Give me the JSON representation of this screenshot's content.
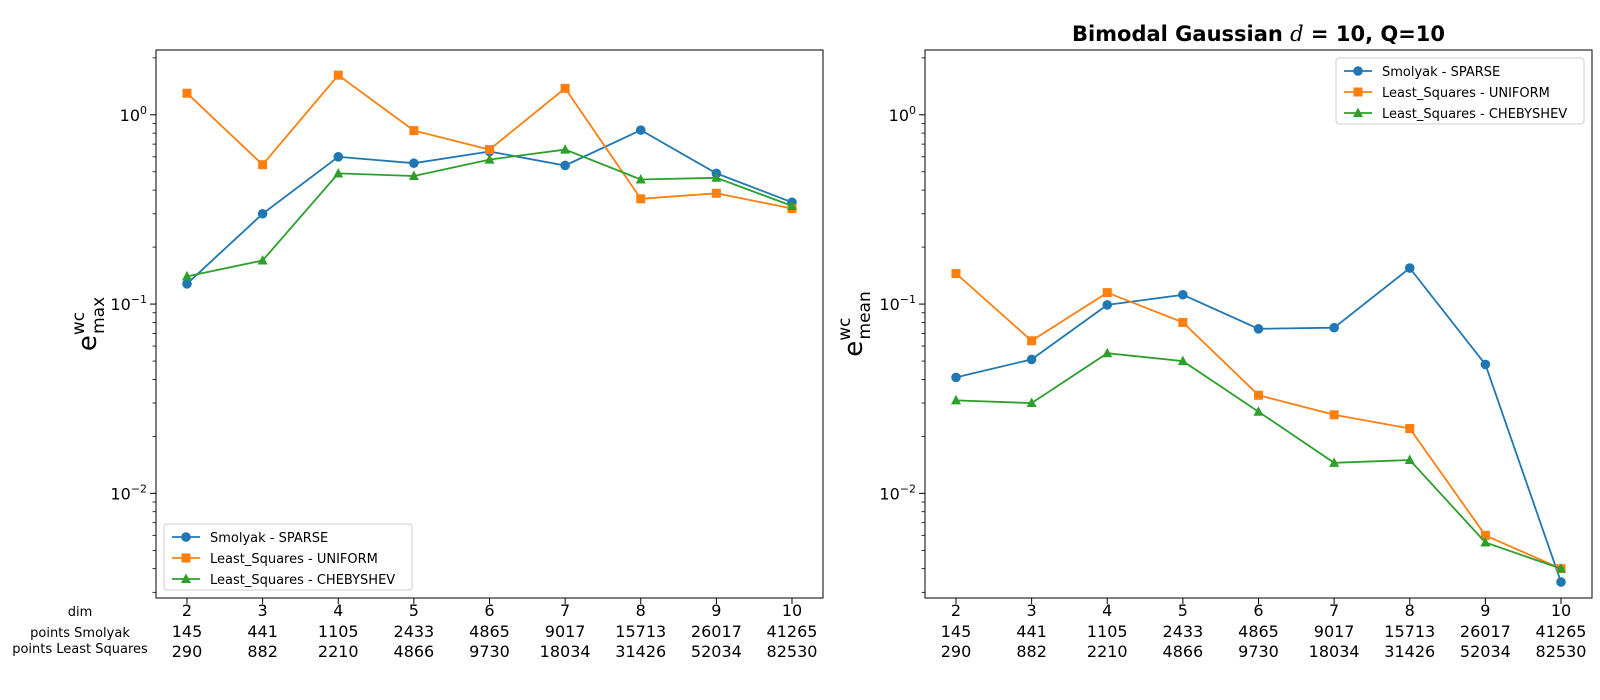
{
  "figure": {
    "row_labels": [
      "dim",
      "points Smolyak",
      "points Least Squares"
    ]
  },
  "chart_data": [
    {
      "type": "line",
      "title": "",
      "ylabel": "e^wc_max",
      "ylabel_base": "e",
      "ylabel_sup": "wc",
      "ylabel_sub": "max",
      "yscale": "log",
      "ylim": [
        0.0028,
        2.2
      ],
      "yticks": [
        {
          "value": 1,
          "base": "10",
          "exp": "0"
        },
        {
          "value": 0.1,
          "base": "10",
          "exp": "−1"
        },
        {
          "value": 0.01,
          "base": "10",
          "exp": "−2"
        }
      ],
      "x": [
        2,
        3,
        4,
        5,
        6,
        7,
        8,
        9,
        10
      ],
      "x_tick_rows": [
        [
          "2",
          "3",
          "4",
          "5",
          "6",
          "7",
          "8",
          "9",
          "10"
        ],
        [
          "145",
          "441",
          "1105",
          "2433",
          "4865",
          "9017",
          "15713",
          "26017",
          "41265"
        ],
        [
          "290",
          "882",
          "2210",
          "4866",
          "9730",
          "18034",
          "31426",
          "52034",
          "82530"
        ]
      ],
      "legend_position": "lower-left",
      "grid": false,
      "series": [
        {
          "name": "Smolyak - SPARSE",
          "color": "#1f77b4",
          "marker": "circle",
          "values": [
            0.128,
            0.3,
            0.6,
            0.555,
            0.64,
            0.54,
            0.83,
            0.49,
            0.345
          ]
        },
        {
          "name": "Least_Squares - UNIFORM",
          "color": "#ff7f0e",
          "marker": "square",
          "values": [
            1.3,
            0.545,
            1.62,
            0.825,
            0.655,
            1.38,
            0.36,
            0.385,
            0.32
          ]
        },
        {
          "name": "Least_Squares - CHEBYSHEV",
          "color": "#2ca02c",
          "marker": "triangle",
          "values": [
            0.14,
            0.17,
            0.49,
            0.475,
            0.58,
            0.655,
            0.455,
            0.465,
            0.33
          ]
        }
      ]
    },
    {
      "type": "line",
      "title": "Bimodal Gaussian d = 10, Q=10",
      "title_part1": "Bimodal Gaussian ",
      "title_math": "d",
      "title_part2": " = 10, Q=10",
      "ylabel": "e^wc_mean",
      "ylabel_base": "e",
      "ylabel_sup": "wc",
      "ylabel_sub": "mean",
      "yscale": "log",
      "ylim": [
        0.0028,
        2.2
      ],
      "yticks": [
        {
          "value": 1,
          "base": "10",
          "exp": "0"
        },
        {
          "value": 0.1,
          "base": "10",
          "exp": "−1"
        },
        {
          "value": 0.01,
          "base": "10",
          "exp": "−2"
        }
      ],
      "x": [
        2,
        3,
        4,
        5,
        6,
        7,
        8,
        9,
        10
      ],
      "x_tick_rows": [
        [
          "2",
          "3",
          "4",
          "5",
          "6",
          "7",
          "8",
          "9",
          "10"
        ],
        [
          "145",
          "441",
          "1105",
          "2433",
          "4865",
          "9017",
          "15713",
          "26017",
          "41265"
        ],
        [
          "290",
          "882",
          "2210",
          "4866",
          "9730",
          "18034",
          "31426",
          "52034",
          "82530"
        ]
      ],
      "legend_position": "upper-right",
      "grid": false,
      "series": [
        {
          "name": "Smolyak - SPARSE",
          "color": "#1f77b4",
          "marker": "circle",
          "values": [
            0.041,
            0.051,
            0.099,
            0.112,
            0.074,
            0.075,
            0.155,
            0.048,
            0.0034
          ]
        },
        {
          "name": "Least_Squares - UNIFORM",
          "color": "#ff7f0e",
          "marker": "square",
          "values": [
            0.145,
            0.064,
            0.115,
            0.08,
            0.033,
            0.026,
            0.022,
            0.006,
            0.004
          ]
        },
        {
          "name": "Least_Squares - CHEBYSHEV",
          "color": "#2ca02c",
          "marker": "triangle",
          "values": [
            0.031,
            0.03,
            0.055,
            0.05,
            0.027,
            0.0145,
            0.015,
            0.0055,
            0.004
          ]
        }
      ]
    }
  ]
}
